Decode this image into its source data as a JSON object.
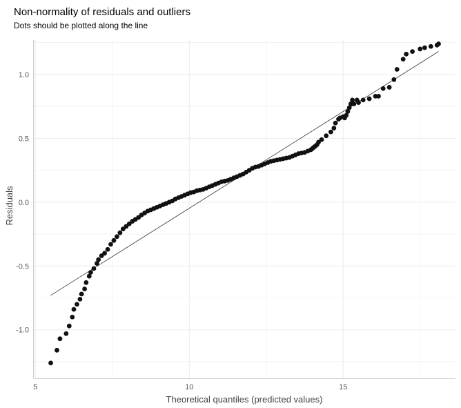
{
  "chart_data": {
    "type": "scatter",
    "title": "Non-normality of residuals and outliers",
    "subtitle": "Dots should be plotted along the line",
    "xlabel": "Theoretical quantiles (predicted values)",
    "ylabel": "Residuals",
    "xlim": [
      4.95,
      18.65
    ],
    "ylim": [
      -1.38,
      1.27
    ],
    "x_ticks": [
      5,
      10,
      15
    ],
    "x_tick_labels": [
      "5",
      "10",
      "15"
    ],
    "y_ticks": [
      -1.0,
      -0.5,
      0.0,
      0.5,
      1.0
    ],
    "y_tick_labels": [
      "-1.0",
      "-0.5",
      "0.0",
      "0.5",
      "1.0"
    ],
    "grid": true,
    "legend": "none",
    "point_color": "#111111",
    "line_color": "#333333",
    "gridline_color": "#ebebeb",
    "reference_line": {
      "x": [
        5.5,
        18.1
      ],
      "y": [
        -0.73,
        1.18
      ]
    },
    "series": [
      {
        "x": [
          5.5,
          5.7,
          5.8,
          6.0,
          6.1,
          6.2,
          6.25,
          6.35,
          6.45,
          6.5,
          6.6,
          6.65,
          6.75,
          6.8,
          6.9,
          7.0,
          7.05,
          7.15,
          7.25,
          7.35,
          7.45,
          7.55,
          7.65,
          7.75,
          7.85,
          7.95,
          8.05,
          8.15,
          8.25,
          8.35,
          8.45,
          8.55,
          8.65,
          8.75,
          8.85,
          8.95,
          9.05,
          9.15,
          9.25,
          9.35,
          9.45,
          9.55,
          9.65,
          9.75,
          9.85,
          9.95,
          10.05,
          10.15,
          10.25,
          10.35,
          10.45,
          10.55,
          10.65,
          10.75,
          10.85,
          10.95,
          11.05,
          11.15,
          11.25,
          11.35,
          11.45,
          11.55,
          11.65,
          11.75,
          11.85,
          11.95,
          12.05,
          12.15,
          12.25,
          12.35,
          12.45,
          12.55,
          12.65,
          12.75,
          12.85,
          12.95,
          13.05,
          13.15,
          13.25,
          13.35,
          13.45,
          13.55,
          13.65,
          13.75,
          13.85,
          13.95,
          14.0,
          14.05,
          14.1,
          14.15,
          14.2,
          14.3,
          14.45,
          14.6,
          14.7,
          14.75,
          14.85,
          14.9,
          15.0,
          15.05,
          15.1,
          15.15,
          15.2,
          15.25,
          15.3,
          15.35,
          15.45,
          15.5,
          15.65,
          15.85,
          16.05,
          16.15,
          16.3,
          16.5,
          16.65,
          16.75,
          16.95,
          17.05,
          17.25,
          17.5,
          17.65,
          17.85,
          18.05,
          18.1
        ],
        "y": [
          -1.26,
          -1.16,
          -1.07,
          -1.03,
          -0.97,
          -0.9,
          -0.84,
          -0.8,
          -0.76,
          -0.72,
          -0.68,
          -0.63,
          -0.58,
          -0.55,
          -0.52,
          -0.48,
          -0.45,
          -0.42,
          -0.4,
          -0.37,
          -0.33,
          -0.3,
          -0.27,
          -0.24,
          -0.21,
          -0.19,
          -0.17,
          -0.15,
          -0.135,
          -0.12,
          -0.1,
          -0.085,
          -0.07,
          -0.06,
          -0.05,
          -0.04,
          -0.03,
          -0.02,
          -0.01,
          0.0,
          0.01,
          0.025,
          0.035,
          0.045,
          0.055,
          0.065,
          0.075,
          0.08,
          0.09,
          0.095,
          0.1,
          0.11,
          0.12,
          0.13,
          0.14,
          0.15,
          0.16,
          0.165,
          0.17,
          0.18,
          0.19,
          0.2,
          0.21,
          0.22,
          0.235,
          0.25,
          0.265,
          0.275,
          0.28,
          0.29,
          0.3,
          0.31,
          0.32,
          0.325,
          0.33,
          0.335,
          0.34,
          0.345,
          0.35,
          0.36,
          0.37,
          0.38,
          0.385,
          0.39,
          0.4,
          0.41,
          0.42,
          0.43,
          0.44,
          0.45,
          0.47,
          0.49,
          0.52,
          0.55,
          0.58,
          0.62,
          0.65,
          0.66,
          0.67,
          0.66,
          0.68,
          0.71,
          0.74,
          0.77,
          0.8,
          0.77,
          0.8,
          0.78,
          0.8,
          0.81,
          0.83,
          0.83,
          0.89,
          0.9,
          0.96,
          1.04,
          1.12,
          1.16,
          1.18,
          1.2,
          1.21,
          1.22,
          1.23,
          1.24
        ]
      }
    ]
  }
}
